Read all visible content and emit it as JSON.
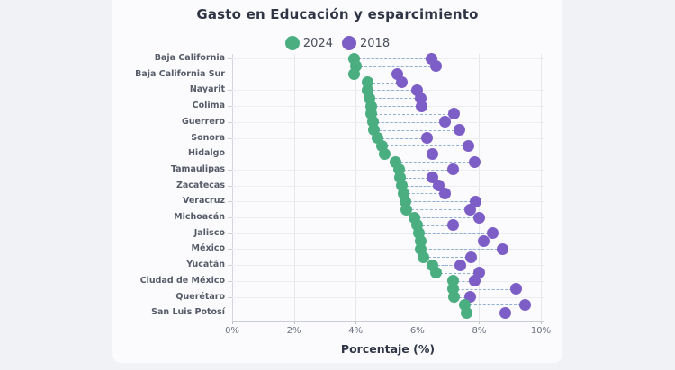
{
  "title": "Gasto en Educación y esparcimiento",
  "legend": [
    {
      "label": "2024",
      "color": "#4bae80"
    },
    {
      "label": "2018",
      "color": "#7d5ec7"
    }
  ],
  "colors": {
    "series_2024": "#4bae80",
    "series_2018": "#7d5ec7",
    "connector_dash": "#8fb0d1",
    "card_background": "#fbfbfd",
    "page_background": "#f1f2f5",
    "title_text": "#2f3545"
  },
  "chart_data": {
    "type": "scatter",
    "variant": "dumbbell",
    "title": "Gasto en Educación y esparcimiento",
    "xlabel": "Porcentaje (%)",
    "ylabel": "",
    "xlim": [
      0,
      10
    ],
    "x_ticks": [
      "0%",
      "2%",
      "4%",
      "6%",
      "8%",
      "10%"
    ],
    "x_tick_values": [
      0,
      2,
      4,
      6,
      8,
      10
    ],
    "grid": true,
    "legend_position": "top",
    "note": "33 rows; only every other row is labeled on the y-axis (unlabeled rows shown as empty strings). Values are percentages read from the axis.",
    "categories": [
      "Baja California",
      "",
      "Baja California Sur",
      "",
      "Nayarit",
      "",
      "Colima",
      "",
      "Guerrero",
      "",
      "Sonora",
      "",
      "Hidalgo",
      "",
      "Tamaulipas",
      "",
      "Zacatecas",
      "",
      "Veracruz",
      "",
      "Michoacán",
      "",
      "Jalisco",
      "",
      "México",
      "",
      "Yucatán",
      "",
      "Ciudad de México",
      "",
      "Querétaro",
      "",
      "San Luis Potosí"
    ],
    "series": [
      {
        "name": "2024",
        "color": "#4bae80",
        "values": [
          3.95,
          4.0,
          3.95,
          4.4,
          4.4,
          4.45,
          4.5,
          4.5,
          4.55,
          4.6,
          4.7,
          4.85,
          4.95,
          5.3,
          5.4,
          5.45,
          5.5,
          5.55,
          5.6,
          5.65,
          5.9,
          6.0,
          6.05,
          6.1,
          6.1,
          6.2,
          6.5,
          6.6,
          7.15,
          7.15,
          7.2,
          7.55,
          7.6
        ]
      },
      {
        "name": "2018",
        "color": "#7d5ec7",
        "values": [
          6.45,
          6.6,
          5.35,
          5.5,
          6.0,
          6.1,
          6.15,
          7.2,
          6.9,
          7.35,
          6.3,
          7.65,
          6.5,
          7.85,
          7.15,
          6.5,
          6.7,
          6.9,
          7.9,
          7.7,
          8.0,
          7.15,
          8.45,
          8.15,
          8.75,
          7.75,
          7.4,
          8.0,
          7.85,
          9.2,
          7.7,
          9.5,
          8.85
        ]
      }
    ]
  }
}
